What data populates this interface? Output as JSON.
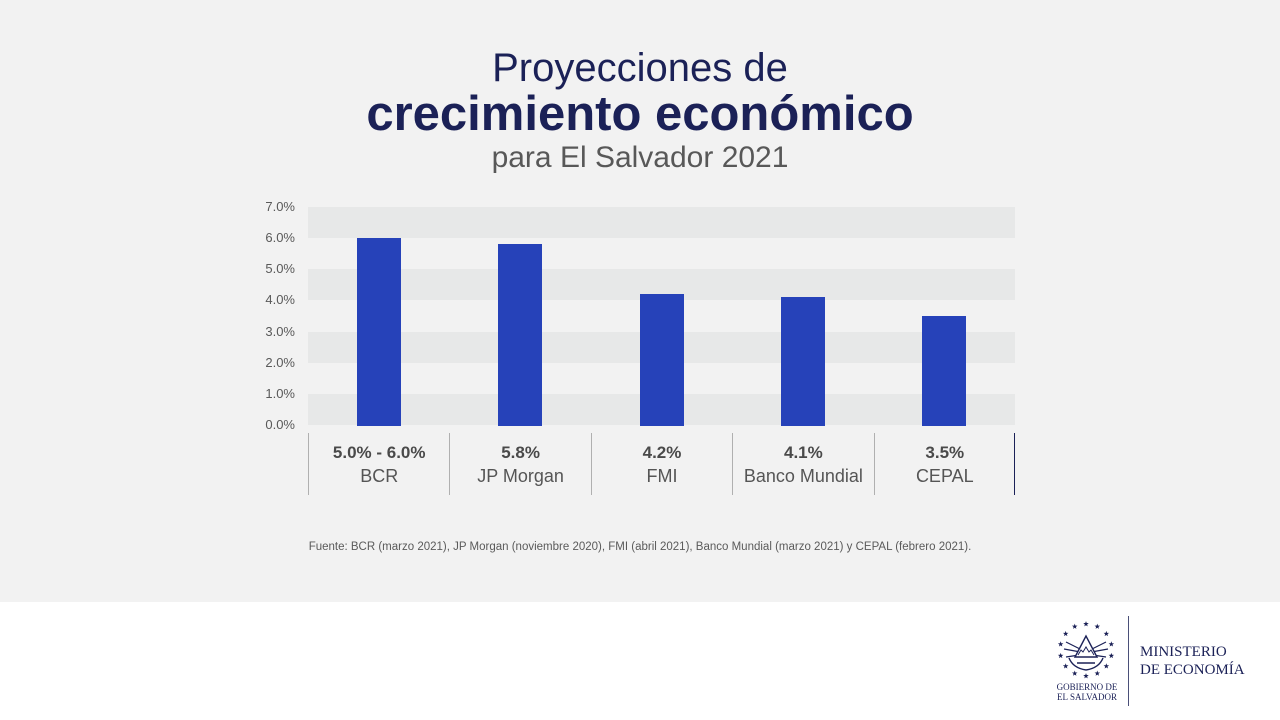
{
  "chart_data": {
    "type": "bar",
    "title": [
      "Proyecciones de",
      "crecimiento económico"
    ],
    "subtitle": "para El Salvador 2021",
    "categories": [
      "BCR",
      "JP Morgan",
      "FMI",
      "Banco Mundial",
      "CEPAL"
    ],
    "values": [
      6.0,
      5.8,
      4.2,
      4.1,
      3.5
    ],
    "data_labels": [
      "5.0% - 6.0%",
      "5.8%",
      "4.2%",
      "4.1%",
      "3.5%"
    ],
    "y_ticks": [
      {
        "value": 7,
        "label": "7.0%"
      },
      {
        "value": 6,
        "label": "6.0%"
      },
      {
        "value": 5,
        "label": "5.0%"
      },
      {
        "value": 4,
        "label": "4.0%"
      },
      {
        "value": 3,
        "label": "3.0%"
      },
      {
        "value": 2,
        "label": "2.0%"
      },
      {
        "value": 1,
        "label": "1.0%"
      },
      {
        "value": 0,
        "label": "0.0%"
      }
    ],
    "ylim": [
      0,
      7
    ],
    "grid": true
  },
  "source_note": "Fuente: BCR (marzo 2021), JP Morgan (noviembre 2020), FMI (abril 2021), Banco Mundial (marzo 2021) y CEPAL (febrero 2021).",
  "footer": {
    "logo_icon": "coat-of-arms-icon",
    "logo_text": [
      "GOBIERNO DE",
      "EL SALVADOR"
    ],
    "ministry": [
      "MINISTERIO",
      "DE ECONOMÍA"
    ]
  },
  "colors": {
    "bar": "#2642b9",
    "title": "#1b2157",
    "band": "#e7e8e8",
    "background": "#f2f2f2"
  }
}
